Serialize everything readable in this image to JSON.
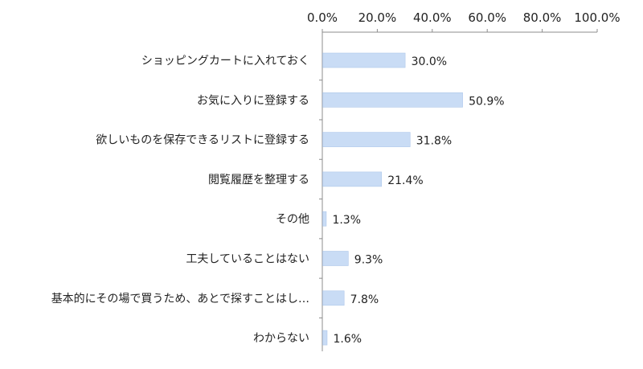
{
  "chart_data": {
    "type": "bar",
    "orientation": "horizontal",
    "categories": [
      "ショッピングカートに入れておく",
      "お気に入りに登録する",
      "欲しいものを保存できるリストに登録する",
      "閲覧履歴を整理する",
      "その他",
      "工夫していることはない",
      "基本的にその場で買うため、あとで探すことはし…",
      "わからない"
    ],
    "values": [
      30.0,
      50.9,
      31.8,
      21.4,
      1.3,
      9.3,
      7.8,
      1.6
    ],
    "data_labels": [
      "30.0%",
      "50.9%",
      "31.8%",
      "21.4%",
      "1.3%",
      "9.3%",
      "7.8%",
      "1.6%"
    ],
    "x_ticks": [
      "0.0%",
      "20.0%",
      "40.0%",
      "60.0%",
      "80.0%",
      "100.0%"
    ],
    "xlim": [
      0,
      100
    ],
    "axis_position": "top",
    "grid": false,
    "legend": "none",
    "bar_color": "#c9dcf5",
    "bar_stroke_color": "#aec7ea",
    "axis_color": "#8c8c8c"
  }
}
